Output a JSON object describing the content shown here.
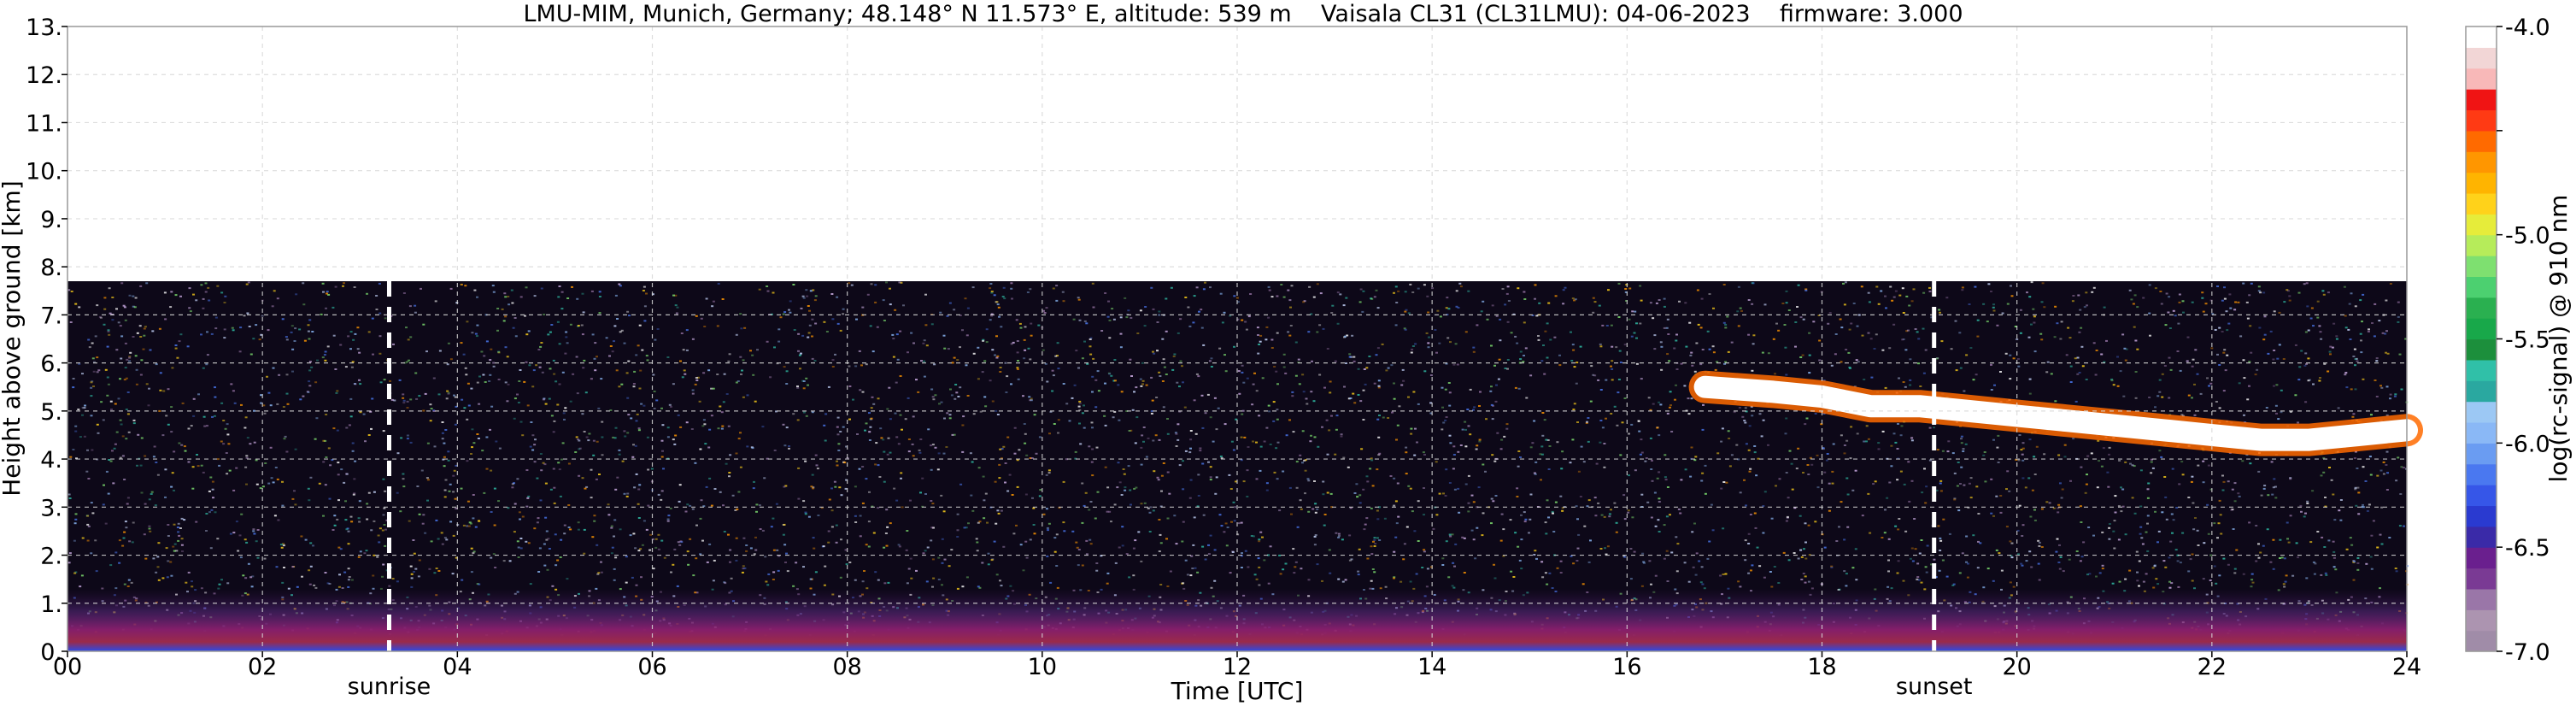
{
  "chart_data": {
    "type": "heatmap",
    "title": "LMU-MIM, Munich, Germany; 48.148° N 11.573° E, altitude: 539 m    Vaisala CL31 (CL31LMU): 04-06-2023    firmware: 3.000",
    "xlabel": "Time [UTC]",
    "ylabel": "Height above ground [km]",
    "xlim": [
      0,
      24
    ],
    "ylim": [
      0,
      13
    ],
    "x_tick_values": [
      0,
      2,
      4,
      6,
      8,
      10,
      12,
      14,
      16,
      18,
      20,
      22,
      24
    ],
    "x_tick_labels": [
      "00",
      "02",
      "04",
      "06",
      "08",
      "10",
      "12",
      "14",
      "16",
      "18",
      "20",
      "22",
      "24"
    ],
    "y_tick_values": [
      0,
      1,
      2,
      3,
      4,
      5,
      6,
      7,
      8,
      9,
      10,
      11,
      12,
      13
    ],
    "y_tick_labels": [
      "0.",
      "1.",
      "2.",
      "3.",
      "4.",
      "5.",
      "6.",
      "7.",
      "8.",
      "9.",
      "10.",
      "11.",
      "12.",
      "13."
    ],
    "grid": true,
    "max_data_height_km": 7.7,
    "events": [
      {
        "label": "sunrise",
        "time": 3.3
      },
      {
        "label": "sunset",
        "time": 19.15
      }
    ],
    "colorbar": {
      "label": "log(rc-signal) @ 910 nm",
      "range": [
        -7.0,
        -4.0
      ],
      "tick_values": [
        -4.0,
        -4.5,
        -5.0,
        -5.5,
        -6.0,
        -6.5,
        -7.0
      ],
      "tick_labels": [
        "-4.0",
        "",
        "-5.0",
        "-5.5",
        "-6.0",
        "-6.5",
        "-7.0"
      ],
      "colors_low_to_high": [
        "#a08ca8",
        "#ac94b0",
        "#9a76a8",
        "#7a3a94",
        "#6a1f8e",
        "#3a2aa8",
        "#2a3ad0",
        "#3656e8",
        "#4a78f0",
        "#6a9cf2",
        "#8ab8f6",
        "#9cc8f4",
        "#2aa8a0",
        "#30c0a8",
        "#1c8f3c",
        "#18a84a",
        "#2ab050",
        "#4cd070",
        "#7ee070",
        "#b6ec5a",
        "#e6ec3a",
        "#ffd21a",
        "#ffb400",
        "#ff9600",
        "#ff6a00",
        "#ff3a14",
        "#f01414",
        "#f8b8b8",
        "#f2d6d6",
        "#ffffff"
      ]
    },
    "cloud_layer": [
      {
        "time": 16.8,
        "height": 5.5
      },
      {
        "time": 17.5,
        "height": 5.4
      },
      {
        "time": 18.0,
        "height": 5.3
      },
      {
        "time": 18.5,
        "height": 5.1
      },
      {
        "time": 19.0,
        "height": 5.1
      },
      {
        "time": 19.5,
        "height": 5.0
      },
      {
        "time": 20.0,
        "height": 4.9
      },
      {
        "time": 20.5,
        "height": 4.8
      },
      {
        "time": 21.0,
        "height": 4.7
      },
      {
        "time": 21.5,
        "height": 4.6
      },
      {
        "time": 22.0,
        "height": 4.5
      },
      {
        "time": 22.5,
        "height": 4.4
      },
      {
        "time": 23.0,
        "height": 4.4
      },
      {
        "time": 23.5,
        "height": 4.5
      },
      {
        "time": 24.0,
        "height": 4.6
      }
    ]
  }
}
